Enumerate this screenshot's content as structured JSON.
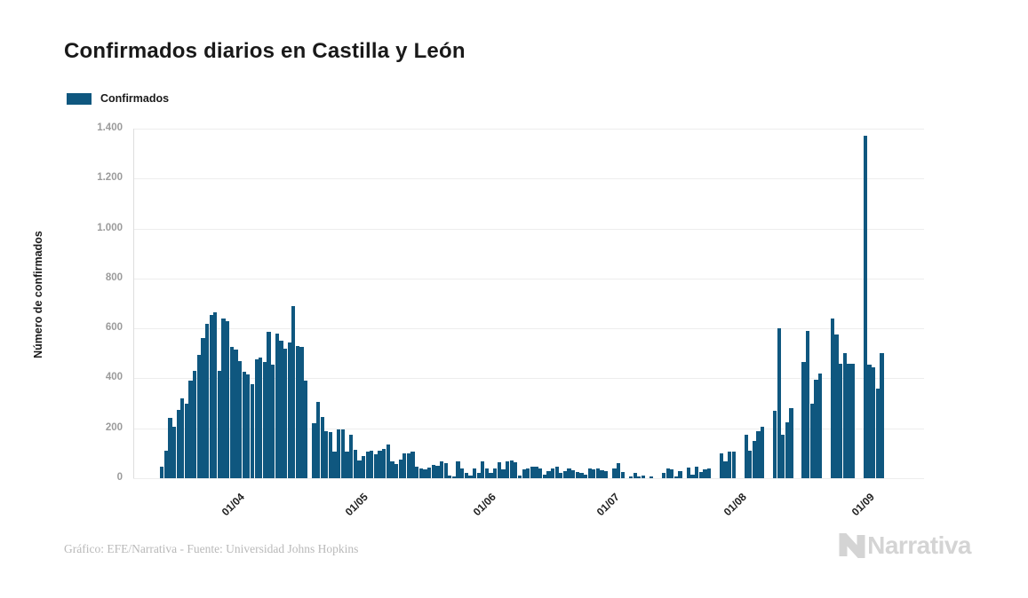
{
  "header": {
    "title": "Confirmados diarios en Castilla y León"
  },
  "legend": {
    "label": "Confirmados",
    "swatch_color": "#0f577f"
  },
  "footer": {
    "credit": "Gráfico: EFE/Narrativa - Fuente: Universidad Johns Hopkins",
    "brand": "Narrativa"
  },
  "chart_data": {
    "type": "bar",
    "title": "Confirmados diarios en Castilla y León",
    "xlabel": "",
    "ylabel": "Número de confirmados",
    "ylim": [
      0,
      1400
    ],
    "grid": true,
    "legend_position": "top-left",
    "bar_color": "#0f577f",
    "x_note": "daily bars, mid-March to early September; zero bars = days without reported data",
    "n_points": 176,
    "y_ticks": [
      {
        "value": 0,
        "label": "0"
      },
      {
        "value": 200,
        "label": "200"
      },
      {
        "value": 400,
        "label": "400"
      },
      {
        "value": 600,
        "label": "600"
      },
      {
        "value": 800,
        "label": "800"
      },
      {
        "value": 1000,
        "label": "1.000"
      },
      {
        "value": 1200,
        "label": "1.200"
      },
      {
        "value": 1400,
        "label": "1.400"
      }
    ],
    "x_ticks": [
      {
        "index": 16,
        "label": "01/04"
      },
      {
        "index": 46,
        "label": "01/05"
      },
      {
        "index": 77,
        "label": "01/06"
      },
      {
        "index": 107,
        "label": "01/07"
      },
      {
        "index": 138,
        "label": "01/08"
      },
      {
        "index": 169,
        "label": "01/09"
      }
    ],
    "series": [
      {
        "name": "Confirmados",
        "values": [
          45,
          110,
          240,
          205,
          275,
          320,
          300,
          390,
          430,
          495,
          560,
          620,
          655,
          665,
          430,
          640,
          630,
          525,
          515,
          470,
          425,
          415,
          375,
          475,
          485,
          465,
          585,
          455,
          580,
          550,
          520,
          545,
          690,
          530,
          525,
          390,
          0,
          220,
          305,
          245,
          190,
          185,
          105,
          195,
          195,
          105,
          175,
          115,
          70,
          90,
          105,
          110,
          95,
          110,
          117,
          135,
          66,
          58,
          73,
          100,
          100,
          105,
          46,
          40,
          36,
          43,
          54,
          49,
          66,
          61,
          10,
          8,
          67,
          40,
          20,
          10,
          40,
          20,
          67,
          40,
          20,
          40,
          63,
          34,
          67,
          72,
          63,
          10,
          34,
          40,
          46,
          48,
          40,
          16,
          28,
          40,
          46,
          20,
          28,
          40,
          31,
          24,
          20,
          16,
          40,
          34,
          40,
          31,
          28,
          0,
          40,
          60,
          24,
          0,
          8,
          20,
          8,
          12,
          0,
          6,
          0,
          0,
          20,
          40,
          36,
          8,
          28,
          0,
          43,
          15,
          48,
          24,
          34,
          40,
          0,
          0,
          100,
          67,
          107,
          107,
          0,
          0,
          175,
          111,
          150,
          190,
          205,
          0,
          0,
          270,
          600,
          174,
          225,
          280,
          0,
          0,
          465,
          590,
          300,
          395,
          420,
          0,
          0,
          640,
          575,
          460,
          500,
          460,
          460,
          0,
          0,
          1370,
          455,
          445,
          360,
          500
        ]
      }
    ]
  }
}
